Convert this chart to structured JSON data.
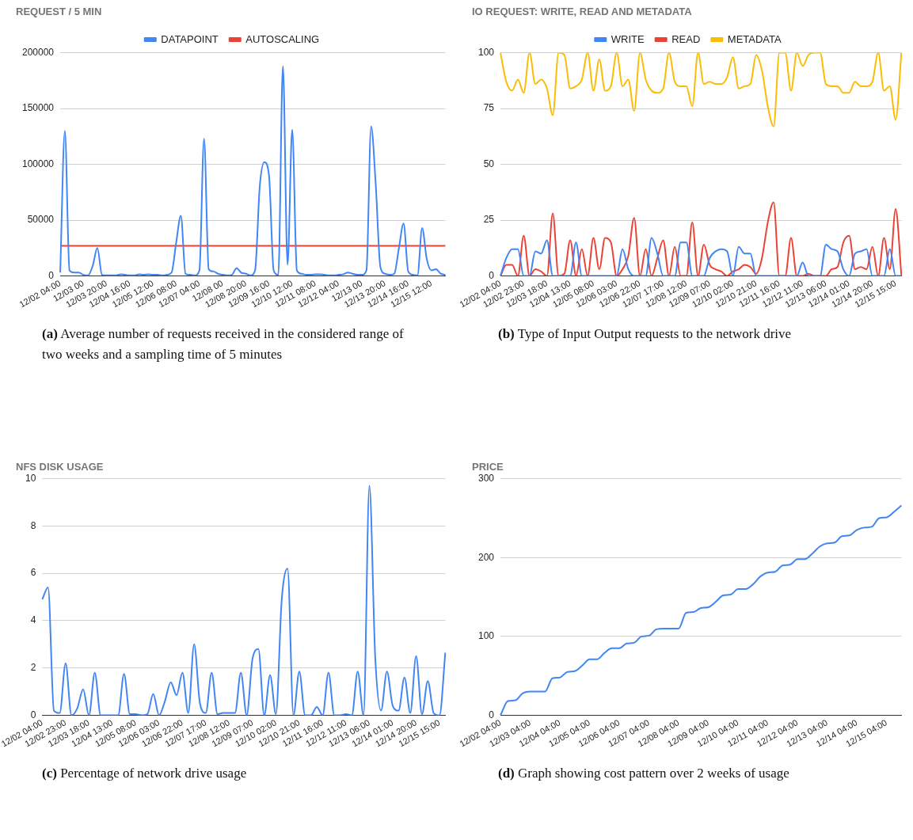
{
  "chart_data": [
    {
      "type": "line",
      "title": "REQUEST / 5 MIN",
      "legend": "top",
      "grid": "y",
      "ylim": [
        0,
        200000
      ],
      "yticks": [
        0,
        50000,
        100000,
        150000,
        200000
      ],
      "annotations": [
        "(a) Average number of requests received in the considered range of two weeks and a sampling time of 5 minutes"
      ],
      "categories": [
        "12/02 04:00",
        null,
        null,
        null,
        null,
        "12/03 00",
        null,
        null,
        null,
        null,
        "12/03 20:00",
        null,
        null,
        null,
        null,
        "12/04 16:00",
        null,
        null,
        null,
        null,
        "12/05 12:00",
        null,
        null,
        null,
        null,
        "12/06 08:00",
        null,
        null,
        null,
        null,
        "12/07 04:00",
        null,
        null,
        null,
        null,
        "12/08 00",
        null,
        null,
        null,
        null,
        "12/08 20:00",
        null,
        null,
        null,
        null,
        "12/09 16:00",
        null,
        null,
        null,
        null,
        "12/10 12:00",
        null,
        null,
        null,
        null,
        "12/11 08:00",
        null,
        null,
        null,
        null,
        "12/12 04:00",
        null,
        null,
        null,
        null,
        "12/13 00",
        null,
        null,
        null,
        null,
        "12/13 20:00",
        null,
        null,
        null,
        null,
        "12/14 16:00",
        null,
        null,
        null,
        null,
        "12/15 12:00",
        null,
        null,
        null
      ],
      "series": [
        {
          "name": "DATAPOINT",
          "color": "#4285f4",
          "values": [
            3000,
            130000,
            5000,
            3000,
            3000,
            1000,
            500,
            9000,
            25000,
            1000,
            500,
            500,
            500,
            1500,
            1000,
            500,
            500,
            1500,
            1000,
            1500,
            1000,
            1000,
            500,
            1000,
            3000,
            30000,
            54000,
            2000,
            1000,
            500,
            5000,
            123000,
            6000,
            4000,
            2000,
            1000,
            500,
            1000,
            7000,
            3000,
            2000,
            500,
            5000,
            80000,
            102000,
            90000,
            5000,
            1000,
            188000,
            10000,
            131000,
            5000,
            2000,
            1000,
            1000,
            1500,
            1500,
            1000,
            500,
            500,
            1000,
            1500,
            3000,
            2000,
            1000,
            1000,
            5000,
            134000,
            82000,
            8000,
            2000,
            1000,
            2000,
            25000,
            47000,
            4000,
            1000,
            500,
            43000,
            15000,
            5000,
            6000,
            2000,
            1000
          ]
        },
        {
          "name": "AUTOSCALING",
          "color": "#ea4335",
          "values": [
            27000,
            27000,
            27000,
            27000,
            27000,
            27000,
            27000,
            27000,
            27000,
            27000,
            27000,
            27000,
            27000,
            27000,
            27000,
            27000,
            27000,
            27000,
            27000,
            27000,
            27000,
            27000,
            27000,
            27000,
            27000,
            27000,
            27000,
            27000,
            27000,
            27000,
            27000,
            27000,
            27000,
            27000,
            27000,
            27000,
            27000,
            27000,
            27000,
            27000,
            27000,
            27000,
            27000,
            27000,
            27000,
            27000,
            27000,
            27000,
            27000,
            27000,
            27000,
            27000,
            27000,
            27000,
            27000,
            27000,
            27000,
            27000,
            27000,
            27000,
            27000,
            27000,
            27000,
            27000,
            27000,
            27000,
            27000,
            27000,
            27000,
            27000,
            27000,
            27000,
            27000,
            27000,
            27000,
            27000,
            27000,
            27000,
            27000,
            27000,
            27000,
            27000,
            27000,
            27000
          ]
        }
      ]
    },
    {
      "type": "line",
      "title": "IO REQUEST: WRITE, READ AND METADATA",
      "legend": "top",
      "grid": "y",
      "ylim": [
        0,
        100
      ],
      "yticks": [
        0,
        25,
        50,
        75,
        100
      ],
      "annotations": [
        "(b) Type of Input Output requests to the network drive"
      ],
      "categories": [
        "12/02 04:00",
        null,
        null,
        null,
        "12/02 23:00",
        null,
        null,
        null,
        "12/03 18:00",
        null,
        null,
        null,
        "12/04 13:00",
        null,
        null,
        null,
        "12/05 08:00",
        null,
        null,
        null,
        "12/06 03:00",
        null,
        null,
        null,
        "12/06 22:00",
        null,
        null,
        null,
        "12/07 17:00",
        null,
        null,
        null,
        "12/08 12:00",
        null,
        null,
        null,
        "12/09 07:00",
        null,
        null,
        null,
        "12/10 02:00",
        null,
        null,
        null,
        "12/10 21:00",
        null,
        null,
        null,
        "12/11 16:00",
        null,
        null,
        null,
        "12/12 11:00",
        null,
        null,
        null,
        "12/13 06:00",
        null,
        null,
        null,
        "12/14 01:00",
        null,
        null,
        null,
        "12/14 20:00",
        null,
        null,
        null,
        "12/15 15:00",
        null
      ],
      "series": [
        {
          "name": "WRITE",
          "color": "#4285f4",
          "values": [
            0,
            8,
            12,
            12,
            0,
            0,
            11,
            10,
            16,
            0,
            0,
            0,
            0,
            15,
            0,
            0,
            0,
            0,
            0,
            0,
            0,
            12,
            3,
            0,
            0,
            0,
            17,
            10,
            0,
            0,
            0,
            15,
            15,
            0,
            0,
            0,
            8,
            11,
            12,
            11,
            0,
            13,
            10,
            10,
            0,
            0,
            0,
            0,
            0,
            0,
            0,
            0,
            6,
            0,
            0,
            0,
            14,
            12,
            11,
            3,
            0,
            10,
            11,
            12,
            0,
            0,
            0,
            12,
            0,
            0
          ]
        },
        {
          "name": "READ",
          "color": "#ea4335",
          "values": [
            0,
            5,
            5,
            0,
            18,
            0,
            3,
            2,
            0,
            28,
            0,
            1,
            16,
            0,
            12,
            0,
            17,
            3,
            17,
            15,
            0,
            3,
            9,
            26,
            0,
            12,
            0,
            8,
            16,
            0,
            13,
            0,
            0,
            24,
            0,
            14,
            5,
            3,
            2,
            0,
            2,
            3,
            5,
            4,
            1,
            8,
            24,
            33,
            0,
            0,
            17,
            0,
            0,
            1,
            0,
            0,
            0,
            3,
            4,
            15,
            18,
            3,
            4,
            3,
            13,
            0,
            17,
            3,
            30,
            0
          ]
        },
        {
          "name": "METADATA",
          "color": "#fbbc04",
          "values": [
            100,
            87,
            83,
            88,
            82,
            100,
            86,
            88,
            84,
            72,
            100,
            99,
            84,
            85,
            88,
            100,
            83,
            97,
            83,
            85,
            100,
            85,
            88,
            74,
            100,
            88,
            83,
            82,
            84,
            100,
            87,
            85,
            85,
            76,
            100,
            86,
            87,
            86,
            86,
            89,
            98,
            84,
            85,
            86,
            99,
            92,
            76,
            67,
            100,
            100,
            83,
            100,
            94,
            99,
            100,
            100,
            86,
            85,
            85,
            82,
            82,
            87,
            85,
            85,
            87,
            100,
            83,
            85,
            70,
            100
          ]
        }
      ]
    },
    {
      "type": "line",
      "title": "NFS DISK USAGE",
      "grid": "y",
      "ylim": [
        0,
        10
      ],
      "yticks": [
        0,
        2,
        4,
        6,
        8,
        10
      ],
      "color": "#4285f4",
      "annotations": [
        "(c) Percentage of network drive usage"
      ],
      "categories": [
        "12/02 04:00",
        null,
        null,
        null,
        "12/02 23:00",
        null,
        null,
        null,
        "12/03 18:00",
        null,
        null,
        null,
        "12/04 13:00",
        null,
        null,
        null,
        "12/05 08:00",
        null,
        null,
        null,
        "12/06 03:00",
        null,
        null,
        null,
        "12/06 22:00",
        null,
        null,
        null,
        "12/07 17:00",
        null,
        null,
        null,
        "12/08 12:00",
        null,
        null,
        null,
        "12/09 07:00",
        null,
        null,
        null,
        "12/10 02:00",
        null,
        null,
        null,
        "12/10 21:00",
        null,
        null,
        null,
        "12/11 16:00",
        null,
        null,
        null,
        "12/12 11:00",
        null,
        null,
        null,
        "12/13 06:00",
        null,
        null,
        null,
        "12/14 01:00",
        null,
        null,
        null,
        "12/14 20:00",
        null,
        null,
        null,
        "12/15 15:00",
        null
      ],
      "values": [
        4.9,
        5.4,
        0.2,
        0.1,
        2.2,
        0,
        0.3,
        1.1,
        0,
        1.8,
        0,
        0,
        0,
        0,
        1.75,
        0.05,
        0.05,
        0,
        0.05,
        0.9,
        0,
        0.6,
        1.4,
        0.85,
        1.8,
        0.1,
        3,
        0.5,
        0.1,
        1.8,
        0.05,
        0.1,
        0.1,
        0.1,
        1.8,
        0,
        2.4,
        2.8,
        0,
        1.7,
        0.05,
        4.9,
        6.2,
        0,
        1.85,
        0,
        0,
        0.35,
        0,
        1.8,
        0,
        0,
        0.05,
        0,
        1.85,
        0,
        9.7,
        2.45,
        0.2,
        1.85,
        0.4,
        0.2,
        1.6,
        0.1,
        2.5,
        0.05,
        1.45,
        0.1,
        0,
        2.65
      ]
    },
    {
      "type": "line",
      "title": "PRICE",
      "grid": "y",
      "ylim": [
        0,
        300
      ],
      "yticks": [
        0,
        100,
        200,
        300
      ],
      "color": "#4285f4",
      "annotations": [
        "(d) Graph showing cost pattern over 2 weeks of usage"
      ],
      "categories": [
        "12/02 04:00",
        null,
        null,
        null,
        "12/03 04:00",
        null,
        null,
        null,
        "12/04 04:00",
        null,
        null,
        null,
        "12/05 04:00",
        null,
        null,
        null,
        "12/06 04:00",
        null,
        null,
        null,
        "12/07 04:00",
        null,
        null,
        null,
        "12/08 04:00",
        null,
        null,
        null,
        "12/09 04:00",
        null,
        null,
        null,
        "12/10 04:00",
        null,
        null,
        null,
        "12/11 04:00",
        null,
        null,
        null,
        "12/12 04:00",
        null,
        null,
        null,
        "12/13 04:00",
        null,
        null,
        null,
        "12/14 04:00",
        null,
        null,
        null,
        "12/15 04:00",
        null,
        null
      ],
      "values": [
        0,
        18,
        19,
        28,
        30,
        30,
        30,
        47,
        48,
        55,
        56,
        63,
        71,
        71,
        79,
        85,
        85,
        91,
        92,
        100,
        101,
        109,
        110,
        110,
        110,
        130,
        131,
        136,
        137,
        144,
        152,
        153,
        160,
        160,
        166,
        176,
        181,
        182,
        190,
        191,
        198,
        198,
        205,
        214,
        218,
        219,
        227,
        228,
        235,
        238,
        239,
        250,
        251,
        258,
        266
      ]
    }
  ]
}
